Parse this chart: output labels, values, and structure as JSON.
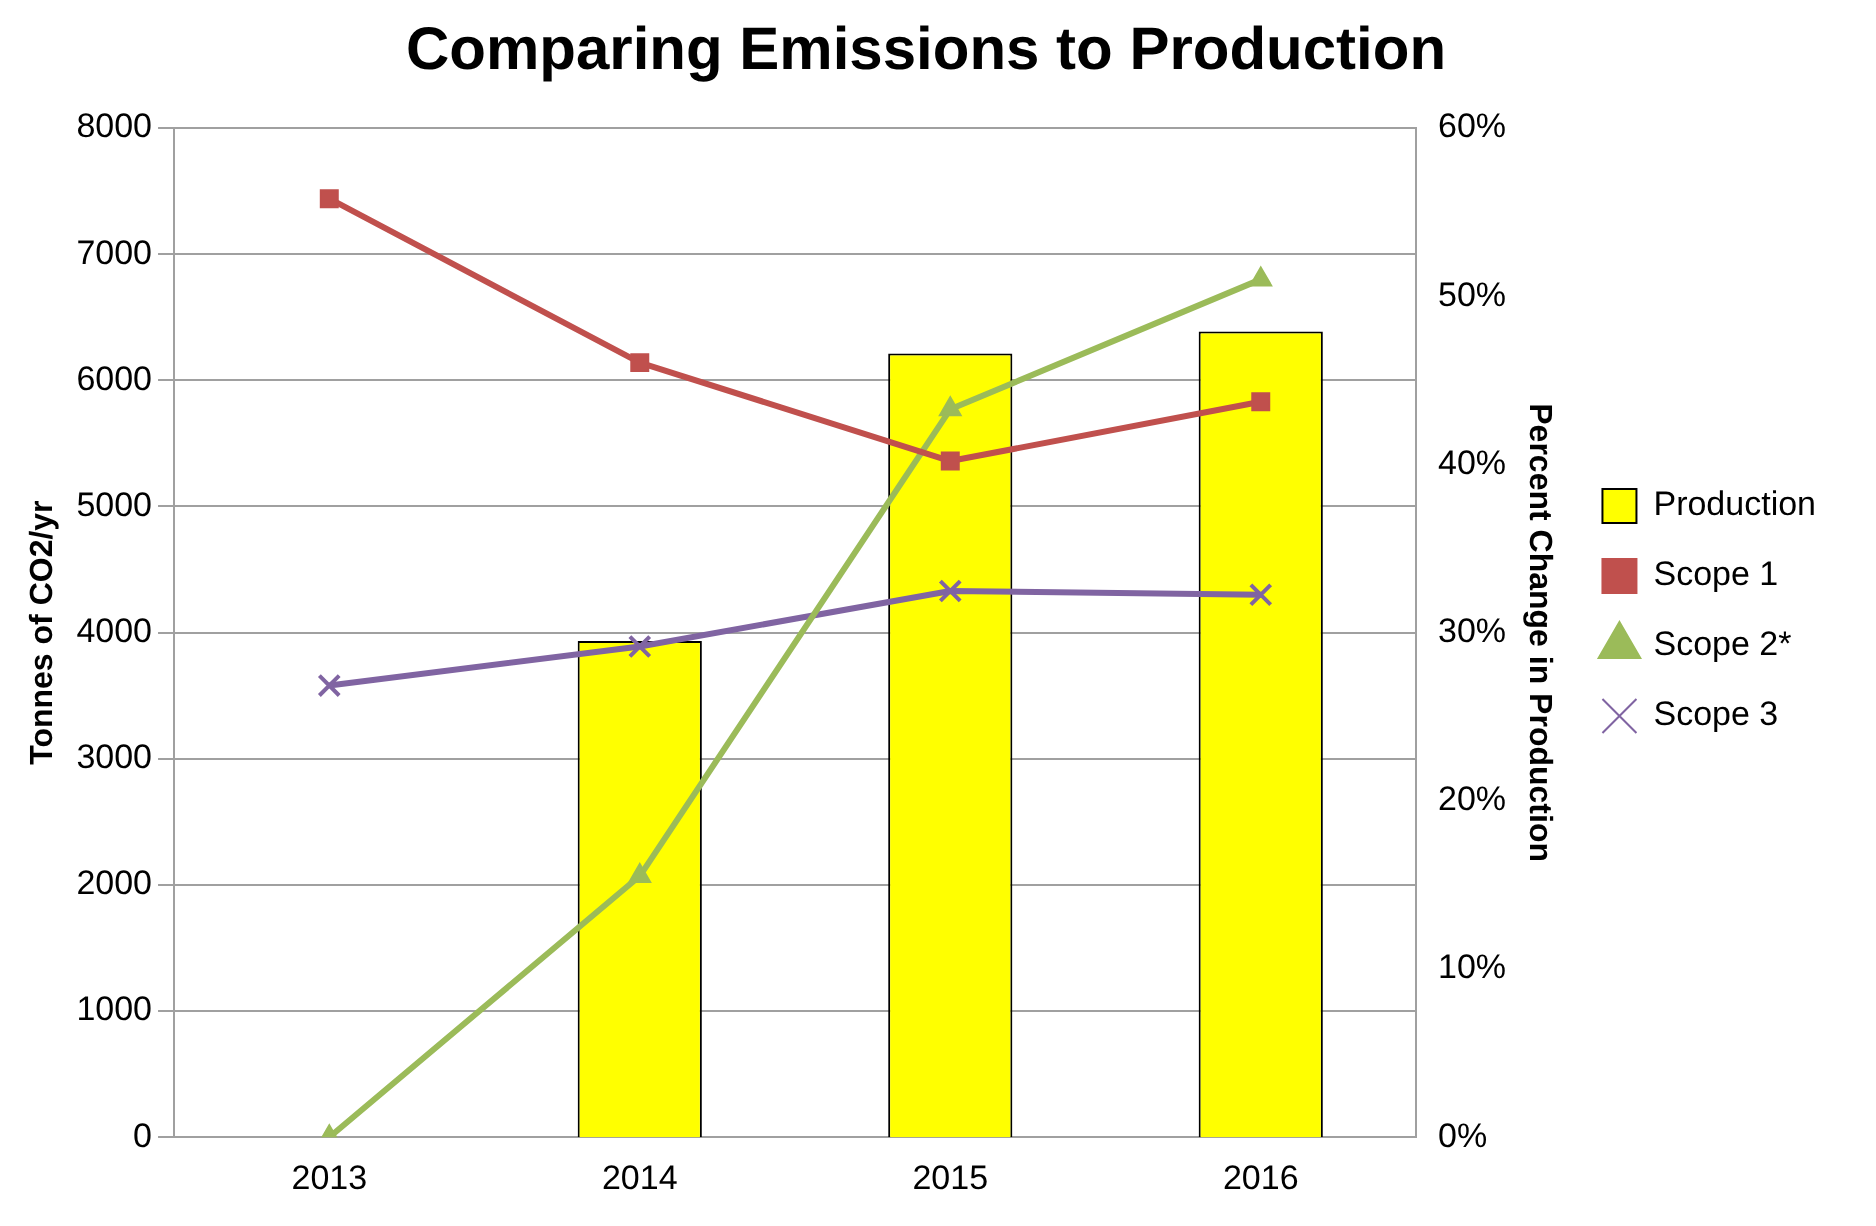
{
  "chart_data": {
    "type": "line",
    "title": "Comparing Emissions to Production",
    "ylabel": "Tonnes of CO2/yr",
    "y2label": "Percent Change in Production",
    "categories": [
      "2013",
      "2014",
      "2015",
      "2016"
    ],
    "series": [
      {
        "name": "Production",
        "type": "bar",
        "axis": "y2",
        "color": "#ffff00",
        "values": [
          null,
          29.5,
          46.6,
          47.9
        ]
      },
      {
        "name": "Scope 1",
        "color": "#c0504d",
        "marker": "square",
        "values": [
          7440,
          6140,
          5360,
          5830
        ]
      },
      {
        "name": "Scope 2*",
        "color": "#9bbb59",
        "marker": "triangle",
        "values": [
          0,
          2070,
          5770,
          6800
        ]
      },
      {
        "name": "Scope 3",
        "color": "#8064a2",
        "marker": "cross",
        "values": [
          3580,
          3890,
          4330,
          4300
        ]
      }
    ],
    "ylim": [
      0,
      8000
    ],
    "yticks": [
      0,
      1000,
      2000,
      3000,
      4000,
      5000,
      6000,
      7000,
      8000
    ],
    "y2lim": [
      0,
      60
    ],
    "y2ticks": [
      {
        "value": 0,
        "label": "0%"
      },
      {
        "value": 10,
        "label": "10%"
      },
      {
        "value": 20,
        "label": "20%"
      },
      {
        "value": 30,
        "label": "30%"
      },
      {
        "value": 40,
        "label": "40%"
      },
      {
        "value": 50,
        "label": "50%"
      },
      {
        "value": 60,
        "label": "60%"
      }
    ],
    "grid": "y",
    "legend": "right"
  }
}
